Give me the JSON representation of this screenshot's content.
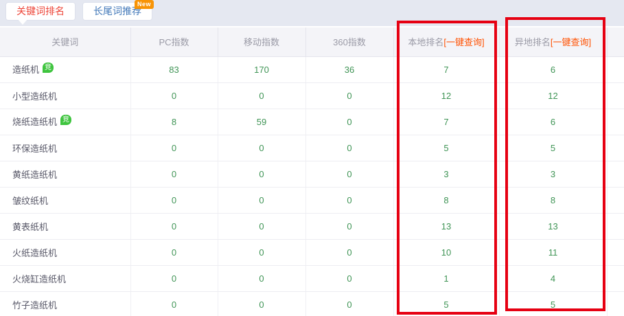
{
  "tabs": {
    "keyword_ranking": "关键词排名",
    "longtail_suggest": "长尾词推荐",
    "new_badge": "New"
  },
  "table": {
    "columns": [
      {
        "label": "关键词"
      },
      {
        "label": "PC指数"
      },
      {
        "label": "移动指数"
      },
      {
        "label": "360指数"
      },
      {
        "label": "本地排名",
        "link": "[一键查询]"
      },
      {
        "label": "异地排名",
        "link": "[一键查询]"
      }
    ],
    "rows": [
      {
        "keyword": "造纸机",
        "badge": "竞",
        "pc": "83",
        "mobile": "170",
        "s360": "36",
        "local": "7",
        "remote": "6"
      },
      {
        "keyword": "小型造纸机",
        "badge": "",
        "pc": "0",
        "mobile": "0",
        "s360": "0",
        "local": "12",
        "remote": "12"
      },
      {
        "keyword": "烧纸造纸机",
        "badge": "竞",
        "pc": "8",
        "mobile": "59",
        "s360": "0",
        "local": "7",
        "remote": "6"
      },
      {
        "keyword": "环保造纸机",
        "badge": "",
        "pc": "0",
        "mobile": "0",
        "s360": "0",
        "local": "5",
        "remote": "5"
      },
      {
        "keyword": "黄纸造纸机",
        "badge": "",
        "pc": "0",
        "mobile": "0",
        "s360": "0",
        "local": "3",
        "remote": "3"
      },
      {
        "keyword": "皱纹纸机",
        "badge": "",
        "pc": "0",
        "mobile": "0",
        "s360": "0",
        "local": "8",
        "remote": "8"
      },
      {
        "keyword": "黄表纸机",
        "badge": "",
        "pc": "0",
        "mobile": "0",
        "s360": "0",
        "local": "13",
        "remote": "13"
      },
      {
        "keyword": "火纸造纸机",
        "badge": "",
        "pc": "0",
        "mobile": "0",
        "s360": "0",
        "local": "10",
        "remote": "11"
      },
      {
        "keyword": "火烧缸造纸机",
        "badge": "",
        "pc": "0",
        "mobile": "0",
        "s360": "0",
        "local": "1",
        "remote": "4"
      },
      {
        "keyword": "竹子造纸机",
        "badge": "",
        "pc": "0",
        "mobile": "0",
        "s360": "0",
        "local": "5",
        "remote": "5"
      }
    ]
  },
  "colors": {
    "highlight_box": "#e60012",
    "rank_number_green": "#3f9455",
    "query_link_orange": "#ff5000",
    "active_tab_red": "#ed4437",
    "inactive_tab_blue": "#4077b8",
    "bid_badge_green": "#3ec43e",
    "new_badge_orange": "#f89406",
    "topbar_bg": "#e5e8f1",
    "header_bg": "#f4f4f8"
  }
}
